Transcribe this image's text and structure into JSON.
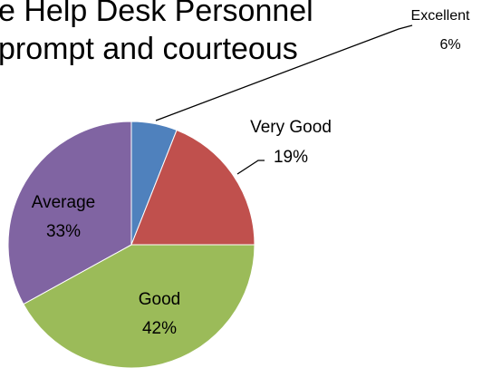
{
  "chart_data": {
    "type": "pie",
    "title": [
      "e Help Desk Personnel",
      "prompt and courteous"
    ],
    "categories": [
      "Excellent",
      "Very Good",
      "Good",
      "Average"
    ],
    "values": [
      6,
      19,
      42,
      33
    ],
    "value_labels": [
      "6%",
      "19%",
      "42%",
      "33%"
    ],
    "colors": [
      "#4f81bd",
      "#c0504d",
      "#9bbb59",
      "#8064a2"
    ]
  }
}
